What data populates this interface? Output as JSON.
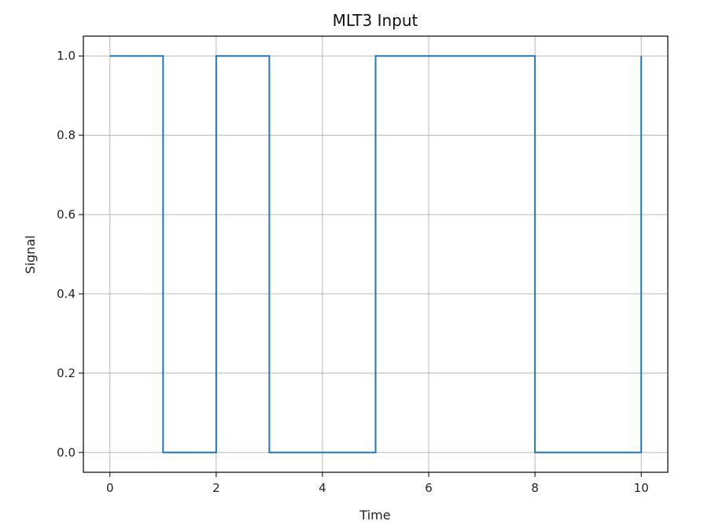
{
  "chart_data": {
    "type": "line",
    "step": "post",
    "title": "MLT3 Input",
    "xlabel": "Time",
    "ylabel": "Signal",
    "xlim": [
      -0.5,
      10.5
    ],
    "ylim": [
      -0.05,
      1.05
    ],
    "xticks": [
      0,
      2,
      4,
      6,
      8,
      10
    ],
    "xtick_labels": [
      "0",
      "2",
      "4",
      "6",
      "8",
      "10"
    ],
    "yticks": [
      0.0,
      0.2,
      0.4,
      0.6,
      0.8,
      1.0
    ],
    "ytick_labels": [
      "0.0",
      "0.2",
      "0.4",
      "0.6",
      "0.8",
      "1.0"
    ],
    "grid": true,
    "series": [
      {
        "x": [
          0,
          1,
          2,
          3,
          4,
          5,
          6,
          7,
          8,
          9,
          10
        ],
        "y": [
          1,
          0,
          1,
          0,
          0,
          1,
          1,
          1,
          0,
          0,
          1
        ],
        "color": "#1f77b4"
      }
    ]
  }
}
